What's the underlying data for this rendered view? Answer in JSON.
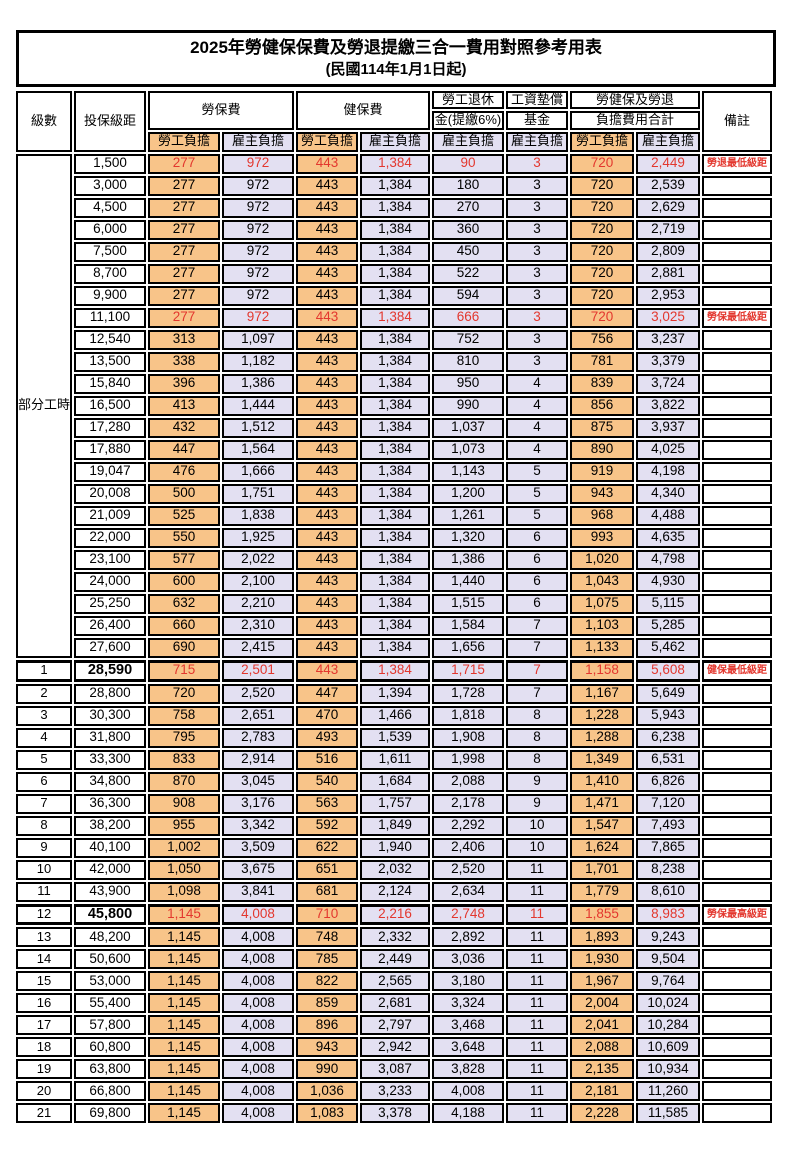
{
  "title": "2025年勞健保保費及勞退提繳三合一費用對照參考用表",
  "subtitle": "(民國114年1月1日起)",
  "colors": {
    "employee_bg": "#F8C489",
    "employer_bg": "#E3E0F2",
    "highlight_text": "#E3372E",
    "border": "#000000"
  },
  "header": {
    "level": "級數",
    "bracket": "投保級距",
    "labor_insurance": "勞保費",
    "health_insurance": "健保費",
    "pension_line1": "勞工退休",
    "pension_line2": "金(提繳6%)",
    "wage_fund_line1": "工資墊償",
    "wage_fund_line2": "基金",
    "total_line1": "勞健保及勞退",
    "total_line2": "負擔費用合計",
    "remark": "備註",
    "employee_label": "勞工負擔",
    "employer_label": "雇主負擔"
  },
  "part_time": {
    "label": "部分工時",
    "span": 23
  },
  "rows": [
    {
      "lv": "",
      "b": "1,500",
      "v": [
        "277",
        "972",
        "443",
        "1,384",
        "90",
        "3",
        "720",
        "2,449"
      ],
      "n": "勞退最低級距",
      "hl": true
    },
    {
      "lv": "",
      "b": "3,000",
      "v": [
        "277",
        "972",
        "443",
        "1,384",
        "180",
        "3",
        "720",
        "2,539"
      ],
      "n": ""
    },
    {
      "lv": "",
      "b": "4,500",
      "v": [
        "277",
        "972",
        "443",
        "1,384",
        "270",
        "3",
        "720",
        "2,629"
      ],
      "n": ""
    },
    {
      "lv": "",
      "b": "6,000",
      "v": [
        "277",
        "972",
        "443",
        "1,384",
        "360",
        "3",
        "720",
        "2,719"
      ],
      "n": ""
    },
    {
      "lv": "",
      "b": "7,500",
      "v": [
        "277",
        "972",
        "443",
        "1,384",
        "450",
        "3",
        "720",
        "2,809"
      ],
      "n": ""
    },
    {
      "lv": "",
      "b": "8,700",
      "v": [
        "277",
        "972",
        "443",
        "1,384",
        "522",
        "3",
        "720",
        "2,881"
      ],
      "n": ""
    },
    {
      "lv": "",
      "b": "9,900",
      "v": [
        "277",
        "972",
        "443",
        "1,384",
        "594",
        "3",
        "720",
        "2,953"
      ],
      "n": ""
    },
    {
      "lv": "",
      "b": "11,100",
      "v": [
        "277",
        "972",
        "443",
        "1,384",
        "666",
        "3",
        "720",
        "3,025"
      ],
      "n": "勞保最低級距",
      "hl": true
    },
    {
      "lv": "",
      "b": "12,540",
      "v": [
        "313",
        "1,097",
        "443",
        "1,384",
        "752",
        "3",
        "756",
        "3,237"
      ],
      "n": ""
    },
    {
      "lv": "",
      "b": "13,500",
      "v": [
        "338",
        "1,182",
        "443",
        "1,384",
        "810",
        "3",
        "781",
        "3,379"
      ],
      "n": ""
    },
    {
      "lv": "",
      "b": "15,840",
      "v": [
        "396",
        "1,386",
        "443",
        "1,384",
        "950",
        "4",
        "839",
        "3,724"
      ],
      "n": ""
    },
    {
      "lv": "",
      "b": "16,500",
      "v": [
        "413",
        "1,444",
        "443",
        "1,384",
        "990",
        "4",
        "856",
        "3,822"
      ],
      "n": ""
    },
    {
      "lv": "",
      "b": "17,280",
      "v": [
        "432",
        "1,512",
        "443",
        "1,384",
        "1,037",
        "4",
        "875",
        "3,937"
      ],
      "n": ""
    },
    {
      "lv": "",
      "b": "17,880",
      "v": [
        "447",
        "1,564",
        "443",
        "1,384",
        "1,073",
        "4",
        "890",
        "4,025"
      ],
      "n": ""
    },
    {
      "lv": "",
      "b": "19,047",
      "v": [
        "476",
        "1,666",
        "443",
        "1,384",
        "1,143",
        "5",
        "919",
        "4,198"
      ],
      "n": ""
    },
    {
      "lv": "",
      "b": "20,008",
      "v": [
        "500",
        "1,751",
        "443",
        "1,384",
        "1,200",
        "5",
        "943",
        "4,340"
      ],
      "n": ""
    },
    {
      "lv": "",
      "b": "21,009",
      "v": [
        "525",
        "1,838",
        "443",
        "1,384",
        "1,261",
        "5",
        "968",
        "4,488"
      ],
      "n": ""
    },
    {
      "lv": "",
      "b": "22,000",
      "v": [
        "550",
        "1,925",
        "443",
        "1,384",
        "1,320",
        "6",
        "993",
        "4,635"
      ],
      "n": ""
    },
    {
      "lv": "",
      "b": "23,100",
      "v": [
        "577",
        "2,022",
        "443",
        "1,384",
        "1,386",
        "6",
        "1,020",
        "4,798"
      ],
      "n": ""
    },
    {
      "lv": "",
      "b": "24,000",
      "v": [
        "600",
        "2,100",
        "443",
        "1,384",
        "1,440",
        "6",
        "1,043",
        "4,930"
      ],
      "n": ""
    },
    {
      "lv": "",
      "b": "25,250",
      "v": [
        "632",
        "2,210",
        "443",
        "1,384",
        "1,515",
        "6",
        "1,075",
        "5,115"
      ],
      "n": ""
    },
    {
      "lv": "",
      "b": "26,400",
      "v": [
        "660",
        "2,310",
        "443",
        "1,384",
        "1,584",
        "7",
        "1,103",
        "5,285"
      ],
      "n": ""
    },
    {
      "lv": "",
      "b": "27,600",
      "v": [
        "690",
        "2,415",
        "443",
        "1,384",
        "1,656",
        "7",
        "1,133",
        "5,462"
      ],
      "n": ""
    },
    {
      "lv": "1",
      "b": "28,590",
      "v": [
        "715",
        "2,501",
        "443",
        "1,384",
        "1,715",
        "7",
        "1,158",
        "5,608"
      ],
      "n": "健保最低級距",
      "hl": true,
      "bold": true,
      "box": true
    },
    {
      "lv": "2",
      "b": "28,800",
      "v": [
        "720",
        "2,520",
        "447",
        "1,394",
        "1,728",
        "7",
        "1,167",
        "5,649"
      ],
      "n": ""
    },
    {
      "lv": "3",
      "b": "30,300",
      "v": [
        "758",
        "2,651",
        "470",
        "1,466",
        "1,818",
        "8",
        "1,228",
        "5,943"
      ],
      "n": ""
    },
    {
      "lv": "4",
      "b": "31,800",
      "v": [
        "795",
        "2,783",
        "493",
        "1,539",
        "1,908",
        "8",
        "1,288",
        "6,238"
      ],
      "n": ""
    },
    {
      "lv": "5",
      "b": "33,300",
      "v": [
        "833",
        "2,914",
        "516",
        "1,611",
        "1,998",
        "8",
        "1,349",
        "6,531"
      ],
      "n": ""
    },
    {
      "lv": "6",
      "b": "34,800",
      "v": [
        "870",
        "3,045",
        "540",
        "1,684",
        "2,088",
        "9",
        "1,410",
        "6,826"
      ],
      "n": ""
    },
    {
      "lv": "7",
      "b": "36,300",
      "v": [
        "908",
        "3,176",
        "563",
        "1,757",
        "2,178",
        "9",
        "1,471",
        "7,120"
      ],
      "n": ""
    },
    {
      "lv": "8",
      "b": "38,200",
      "v": [
        "955",
        "3,342",
        "592",
        "1,849",
        "2,292",
        "10",
        "1,547",
        "7,493"
      ],
      "n": ""
    },
    {
      "lv": "9",
      "b": "40,100",
      "v": [
        "1,002",
        "3,509",
        "622",
        "1,940",
        "2,406",
        "10",
        "1,624",
        "7,865"
      ],
      "n": ""
    },
    {
      "lv": "10",
      "b": "42,000",
      "v": [
        "1,050",
        "3,675",
        "651",
        "2,032",
        "2,520",
        "11",
        "1,701",
        "8,238"
      ],
      "n": ""
    },
    {
      "lv": "11",
      "b": "43,900",
      "v": [
        "1,098",
        "3,841",
        "681",
        "2,124",
        "2,634",
        "11",
        "1,779",
        "8,610"
      ],
      "n": ""
    },
    {
      "lv": "12",
      "b": "45,800",
      "v": [
        "1,145",
        "4,008",
        "710",
        "2,216",
        "2,748",
        "11",
        "1,855",
        "8,983"
      ],
      "n": "勞保最高級距",
      "hl": true,
      "bold": true,
      "box": true
    },
    {
      "lv": "13",
      "b": "48,200",
      "v": [
        "1,145",
        "4,008",
        "748",
        "2,332",
        "2,892",
        "11",
        "1,893",
        "9,243"
      ],
      "n": ""
    },
    {
      "lv": "14",
      "b": "50,600",
      "v": [
        "1,145",
        "4,008",
        "785",
        "2,449",
        "3,036",
        "11",
        "1,930",
        "9,504"
      ],
      "n": ""
    },
    {
      "lv": "15",
      "b": "53,000",
      "v": [
        "1,145",
        "4,008",
        "822",
        "2,565",
        "3,180",
        "11",
        "1,967",
        "9,764"
      ],
      "n": ""
    },
    {
      "lv": "16",
      "b": "55,400",
      "v": [
        "1,145",
        "4,008",
        "859",
        "2,681",
        "3,324",
        "11",
        "2,004",
        "10,024"
      ],
      "n": ""
    },
    {
      "lv": "17",
      "b": "57,800",
      "v": [
        "1,145",
        "4,008",
        "896",
        "2,797",
        "3,468",
        "11",
        "2,041",
        "10,284"
      ],
      "n": ""
    },
    {
      "lv": "18",
      "b": "60,800",
      "v": [
        "1,145",
        "4,008",
        "943",
        "2,942",
        "3,648",
        "11",
        "2,088",
        "10,609"
      ],
      "n": ""
    },
    {
      "lv": "19",
      "b": "63,800",
      "v": [
        "1,145",
        "4,008",
        "990",
        "3,087",
        "3,828",
        "11",
        "2,135",
        "10,934"
      ],
      "n": ""
    },
    {
      "lv": "20",
      "b": "66,800",
      "v": [
        "1,145",
        "4,008",
        "1,036",
        "3,233",
        "4,008",
        "11",
        "2,181",
        "11,260"
      ],
      "n": ""
    },
    {
      "lv": "21",
      "b": "69,800",
      "v": [
        "1,145",
        "4,008",
        "1,083",
        "3,378",
        "4,188",
        "11",
        "2,228",
        "11,585"
      ],
      "n": ""
    }
  ],
  "value_column_styles": [
    "emp",
    "er",
    "emp",
    "er",
    "er",
    "er",
    "emp",
    "er"
  ]
}
